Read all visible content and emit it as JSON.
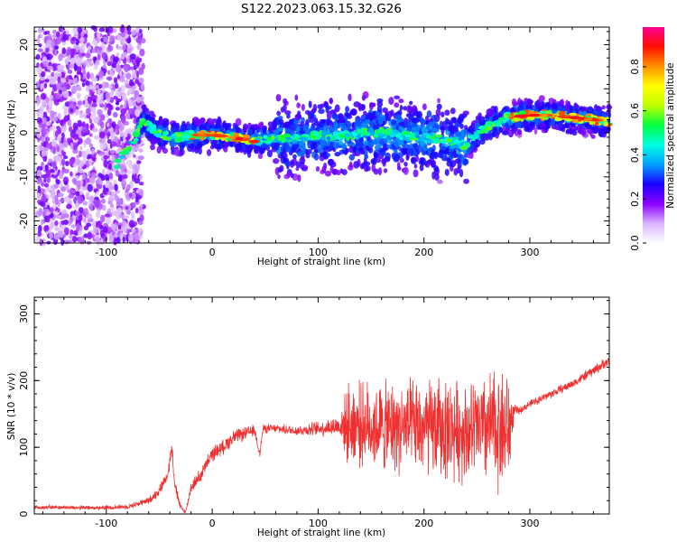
{
  "title": "S122.2023.063.15.32.G26",
  "chart_data": [
    {
      "type": "heatmap",
      "name": "spectrogram",
      "xlabel": "Height of straight line (km)",
      "ylabel": "Frequency (Hz)",
      "xlim": [
        -168,
        375
      ],
      "ylim": [
        -25,
        24
      ],
      "xticks": [
        -100,
        0,
        100,
        200,
        300
      ],
      "xtick_labels": [
        "-100",
        "0",
        "100",
        "200",
        "300"
      ],
      "yticks": [
        -20,
        -10,
        0,
        10,
        20
      ],
      "ytick_labels": [
        "-20",
        "-10",
        "0",
        "10",
        "20"
      ],
      "colorbar": {
        "label": "Normalized spectral amplitude",
        "range": [
          0,
          0.98
        ],
        "ticks": [
          0.0,
          0.2,
          0.4,
          0.6,
          0.8
        ],
        "tick_labels": [
          "0.0",
          "0.2",
          "0.4",
          "0.6",
          "0.8"
        ],
        "colormap": [
          "#ffffff",
          "#d9b3ff",
          "#8a00ff",
          "#1a00ff",
          "#00a0ff",
          "#00ffe0",
          "#00ff40",
          "#c0ff00",
          "#ffff00",
          "#ff9000",
          "#ff1000",
          "#ff0090"
        ]
      },
      "ridge_frequency": {
        "x": [
          -90,
          -80,
          -72,
          -65,
          -58,
          -50,
          -40,
          -30,
          -20,
          0,
          20,
          40,
          60,
          80,
          100,
          120,
          140,
          160,
          180,
          200,
          220,
          238,
          250,
          265,
          280,
          300,
          320,
          340,
          360,
          375
        ],
        "y": [
          -7,
          -4,
          -1,
          3,
          1,
          0,
          -1,
          -1,
          -0.5,
          -0.5,
          -1,
          -2,
          -1,
          -1.5,
          -0.5,
          -1,
          0,
          0,
          -0.5,
          -1,
          -1.5,
          -3,
          0,
          2,
          3.5,
          4,
          4,
          3.5,
          3,
          2.5
        ]
      }
    },
    {
      "type": "line",
      "name": "snr",
      "xlabel": "Height of straight line (km)",
      "ylabel": "SNR (10 * v/v)",
      "xlim": [
        -168,
        375
      ],
      "ylim": [
        0,
        325
      ],
      "xticks": [
        -100,
        0,
        100,
        200,
        300
      ],
      "xtick_labels": [
        "-100",
        "0",
        "100",
        "200",
        "300"
      ],
      "yticks": [
        0,
        100,
        200,
        300
      ],
      "ytick_labels": [
        "0",
        "100",
        "200",
        "300"
      ],
      "color": "#f03030",
      "envelope": {
        "x": [
          -168,
          -140,
          -110,
          -80,
          -60,
          -50,
          -42,
          -38,
          -35,
          -30,
          -25,
          -20,
          -10,
          0,
          10,
          20,
          40,
          45,
          48,
          60,
          80,
          100,
          120,
          130,
          140,
          160,
          180,
          200,
          220,
          240,
          260,
          270,
          280,
          285,
          290,
          300,
          320,
          340,
          360,
          375
        ],
        "mean": [
          10,
          10,
          9,
          11,
          20,
          35,
          60,
          100,
          40,
          10,
          3,
          40,
          60,
          90,
          100,
          115,
          125,
          90,
          128,
          128,
          125,
          128,
          132,
          135,
          135,
          130,
          130,
          128,
          128,
          125,
          128,
          130,
          125,
          155,
          155,
          165,
          180,
          195,
          215,
          230
        ],
        "spread": [
          3,
          3,
          3,
          3,
          5,
          7,
          8,
          12,
          10,
          5,
          2,
          8,
          10,
          10,
          10,
          10,
          8,
          5,
          6,
          6,
          7,
          10,
          15,
          60,
          55,
          60,
          62,
          65,
          70,
          65,
          75,
          85,
          80,
          8,
          5,
          5,
          6,
          6,
          7,
          7
        ]
      }
    }
  ]
}
